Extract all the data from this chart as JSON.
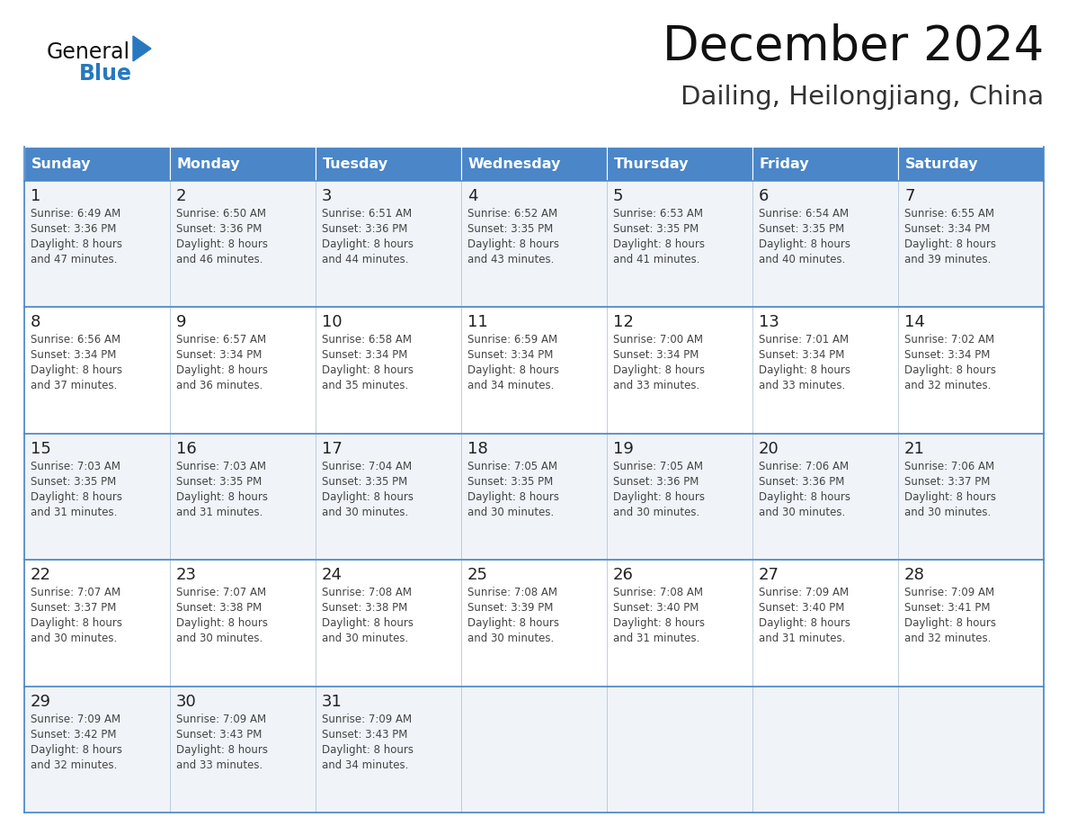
{
  "title": "December 2024",
  "subtitle": "Dailing, Heilongjiang, China",
  "days_of_week": [
    "Sunday",
    "Monday",
    "Tuesday",
    "Wednesday",
    "Thursday",
    "Friday",
    "Saturday"
  ],
  "header_bg": "#4a86c8",
  "header_text": "#ffffff",
  "row_bg_light": "#f0f4f8",
  "row_bg_white": "#ffffff",
  "border_color": "#4a86c8",
  "cell_border_color": "#b0c4d8",
  "day_num_color": "#222222",
  "cell_text_color": "#444444",
  "title_color": "#111111",
  "subtitle_color": "#333333",
  "logo_general_color": "#111111",
  "logo_blue_color": "#2878c0",
  "calendar_data": [
    {
      "day": 1,
      "col": 0,
      "row": 0,
      "sunrise": "6:49 AM",
      "sunset": "3:36 PM",
      "daylight_hours": 8,
      "daylight_mins": 47
    },
    {
      "day": 2,
      "col": 1,
      "row": 0,
      "sunrise": "6:50 AM",
      "sunset": "3:36 PM",
      "daylight_hours": 8,
      "daylight_mins": 46
    },
    {
      "day": 3,
      "col": 2,
      "row": 0,
      "sunrise": "6:51 AM",
      "sunset": "3:36 PM",
      "daylight_hours": 8,
      "daylight_mins": 44
    },
    {
      "day": 4,
      "col": 3,
      "row": 0,
      "sunrise": "6:52 AM",
      "sunset": "3:35 PM",
      "daylight_hours": 8,
      "daylight_mins": 43
    },
    {
      "day": 5,
      "col": 4,
      "row": 0,
      "sunrise": "6:53 AM",
      "sunset": "3:35 PM",
      "daylight_hours": 8,
      "daylight_mins": 41
    },
    {
      "day": 6,
      "col": 5,
      "row": 0,
      "sunrise": "6:54 AM",
      "sunset": "3:35 PM",
      "daylight_hours": 8,
      "daylight_mins": 40
    },
    {
      "day": 7,
      "col": 6,
      "row": 0,
      "sunrise": "6:55 AM",
      "sunset": "3:34 PM",
      "daylight_hours": 8,
      "daylight_mins": 39
    },
    {
      "day": 8,
      "col": 0,
      "row": 1,
      "sunrise": "6:56 AM",
      "sunset": "3:34 PM",
      "daylight_hours": 8,
      "daylight_mins": 37
    },
    {
      "day": 9,
      "col": 1,
      "row": 1,
      "sunrise": "6:57 AM",
      "sunset": "3:34 PM",
      "daylight_hours": 8,
      "daylight_mins": 36
    },
    {
      "day": 10,
      "col": 2,
      "row": 1,
      "sunrise": "6:58 AM",
      "sunset": "3:34 PM",
      "daylight_hours": 8,
      "daylight_mins": 35
    },
    {
      "day": 11,
      "col": 3,
      "row": 1,
      "sunrise": "6:59 AM",
      "sunset": "3:34 PM",
      "daylight_hours": 8,
      "daylight_mins": 34
    },
    {
      "day": 12,
      "col": 4,
      "row": 1,
      "sunrise": "7:00 AM",
      "sunset": "3:34 PM",
      "daylight_hours": 8,
      "daylight_mins": 33
    },
    {
      "day": 13,
      "col": 5,
      "row": 1,
      "sunrise": "7:01 AM",
      "sunset": "3:34 PM",
      "daylight_hours": 8,
      "daylight_mins": 33
    },
    {
      "day": 14,
      "col": 6,
      "row": 1,
      "sunrise": "7:02 AM",
      "sunset": "3:34 PM",
      "daylight_hours": 8,
      "daylight_mins": 32
    },
    {
      "day": 15,
      "col": 0,
      "row": 2,
      "sunrise": "7:03 AM",
      "sunset": "3:35 PM",
      "daylight_hours": 8,
      "daylight_mins": 31
    },
    {
      "day": 16,
      "col": 1,
      "row": 2,
      "sunrise": "7:03 AM",
      "sunset": "3:35 PM",
      "daylight_hours": 8,
      "daylight_mins": 31
    },
    {
      "day": 17,
      "col": 2,
      "row": 2,
      "sunrise": "7:04 AM",
      "sunset": "3:35 PM",
      "daylight_hours": 8,
      "daylight_mins": 30
    },
    {
      "day": 18,
      "col": 3,
      "row": 2,
      "sunrise": "7:05 AM",
      "sunset": "3:35 PM",
      "daylight_hours": 8,
      "daylight_mins": 30
    },
    {
      "day": 19,
      "col": 4,
      "row": 2,
      "sunrise": "7:05 AM",
      "sunset": "3:36 PM",
      "daylight_hours": 8,
      "daylight_mins": 30
    },
    {
      "day": 20,
      "col": 5,
      "row": 2,
      "sunrise": "7:06 AM",
      "sunset": "3:36 PM",
      "daylight_hours": 8,
      "daylight_mins": 30
    },
    {
      "day": 21,
      "col": 6,
      "row": 2,
      "sunrise": "7:06 AM",
      "sunset": "3:37 PM",
      "daylight_hours": 8,
      "daylight_mins": 30
    },
    {
      "day": 22,
      "col": 0,
      "row": 3,
      "sunrise": "7:07 AM",
      "sunset": "3:37 PM",
      "daylight_hours": 8,
      "daylight_mins": 30
    },
    {
      "day": 23,
      "col": 1,
      "row": 3,
      "sunrise": "7:07 AM",
      "sunset": "3:38 PM",
      "daylight_hours": 8,
      "daylight_mins": 30
    },
    {
      "day": 24,
      "col": 2,
      "row": 3,
      "sunrise": "7:08 AM",
      "sunset": "3:38 PM",
      "daylight_hours": 8,
      "daylight_mins": 30
    },
    {
      "day": 25,
      "col": 3,
      "row": 3,
      "sunrise": "7:08 AM",
      "sunset": "3:39 PM",
      "daylight_hours": 8,
      "daylight_mins": 30
    },
    {
      "day": 26,
      "col": 4,
      "row": 3,
      "sunrise": "7:08 AM",
      "sunset": "3:40 PM",
      "daylight_hours": 8,
      "daylight_mins": 31
    },
    {
      "day": 27,
      "col": 5,
      "row": 3,
      "sunrise": "7:09 AM",
      "sunset": "3:40 PM",
      "daylight_hours": 8,
      "daylight_mins": 31
    },
    {
      "day": 28,
      "col": 6,
      "row": 3,
      "sunrise": "7:09 AM",
      "sunset": "3:41 PM",
      "daylight_hours": 8,
      "daylight_mins": 32
    },
    {
      "day": 29,
      "col": 0,
      "row": 4,
      "sunrise": "7:09 AM",
      "sunset": "3:42 PM",
      "daylight_hours": 8,
      "daylight_mins": 32
    },
    {
      "day": 30,
      "col": 1,
      "row": 4,
      "sunrise": "7:09 AM",
      "sunset": "3:43 PM",
      "daylight_hours": 8,
      "daylight_mins": 33
    },
    {
      "day": 31,
      "col": 2,
      "row": 4,
      "sunrise": "7:09 AM",
      "sunset": "3:43 PM",
      "daylight_hours": 8,
      "daylight_mins": 34
    }
  ]
}
